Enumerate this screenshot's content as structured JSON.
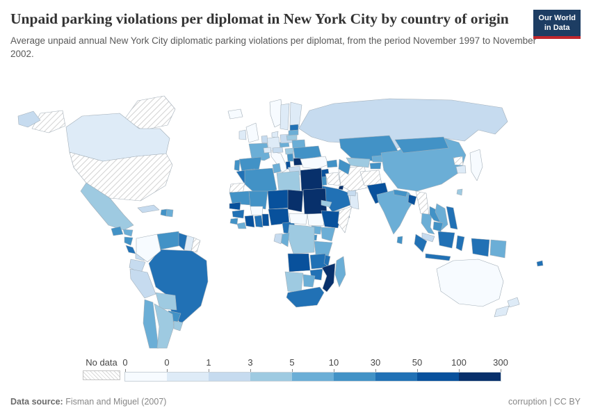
{
  "header": {
    "title": "Unpaid parking violations per diplomat in New York City by country of origin",
    "subtitle": "Average unpaid annual New York City diplomatic parking violations per diplomat, from the period November 1997 to November 2002.",
    "logo": {
      "line1": "Our World",
      "line2": "in Data"
    }
  },
  "footer": {
    "datasource_label": "Data source:",
    "datasource_value": "Fisman and Miguel (2007)",
    "credits": "corruption | CC BY"
  },
  "colors": {
    "brand_navy": "#1d3d63",
    "brand_red": "#c0272d",
    "country_border": "#a2aeb8",
    "title_text": "#333333",
    "subtitle_text": "#595959",
    "footer_text": "#878787"
  },
  "chart_data": {
    "type": "choropleth_map",
    "metric": "Average unpaid annual New York City diplomatic parking violations per diplomat, November 1997 to November 2002",
    "legend": {
      "no_data_label": "No data",
      "tick_labels": [
        "0",
        "0",
        "1",
        "3",
        "5",
        "10",
        "30",
        "50",
        "100",
        "300"
      ],
      "bucket_ranges": [
        "0",
        "0–1",
        "1–3",
        "3–5",
        "5–10",
        "10–30",
        "30–50",
        "50–100",
        "100–300"
      ],
      "colors": [
        "#f7fbff",
        "#deebf7",
        "#c6dbef",
        "#9ecae1",
        "#6baed6",
        "#4292c6",
        "#2171b5",
        "#08519c",
        "#08306b"
      ]
    },
    "countries": [
      {
        "name": "Canada",
        "bucket": 1
      },
      {
        "name": "United States",
        "bucket": null
      },
      {
        "name": "Greenland",
        "bucket": null
      },
      {
        "name": "Mexico",
        "bucket": 3
      },
      {
        "name": "Guatemala",
        "bucket": 5
      },
      {
        "name": "Honduras",
        "bucket": 4
      },
      {
        "name": "Nicaragua",
        "bucket": 5
      },
      {
        "name": "Costa Rica",
        "bucket": 6
      },
      {
        "name": "Panama",
        "bucket": 2
      },
      {
        "name": "Cuba",
        "bucket": 2
      },
      {
        "name": "Haiti",
        "bucket": 5
      },
      {
        "name": "Dominican Republic",
        "bucket": 4
      },
      {
        "name": "Colombia",
        "bucket": 0
      },
      {
        "name": "Venezuela",
        "bucket": 5
      },
      {
        "name": "Guyana",
        "bucket": 6
      },
      {
        "name": "Suriname",
        "bucket": 1
      },
      {
        "name": "French Guiana",
        "bucket": null
      },
      {
        "name": "Ecuador",
        "bucket": 2
      },
      {
        "name": "Peru",
        "bucket": 2
      },
      {
        "name": "Brazil",
        "bucket": 6
      },
      {
        "name": "Bolivia",
        "bucket": 3
      },
      {
        "name": "Paraguay",
        "bucket": 5
      },
      {
        "name": "Chile",
        "bucket": 4
      },
      {
        "name": "Argentina",
        "bucket": 3
      },
      {
        "name": "Uruguay",
        "bucket": 3
      },
      {
        "name": "Iceland",
        "bucket": 0
      },
      {
        "name": "United Kingdom",
        "bucket": 0
      },
      {
        "name": "Ireland",
        "bucket": 1
      },
      {
        "name": "Norway",
        "bucket": 0
      },
      {
        "name": "Sweden",
        "bucket": 1
      },
      {
        "name": "Finland",
        "bucket": 1
      },
      {
        "name": "Denmark",
        "bucket": 1
      },
      {
        "name": "Germany",
        "bucket": 1
      },
      {
        "name": "Netherlands",
        "bucket": 2
      },
      {
        "name": "France",
        "bucket": 4
      },
      {
        "name": "Spain",
        "bucket": 5
      },
      {
        "name": "Portugal",
        "bucket": 5
      },
      {
        "name": "Italy",
        "bucket": 0
      },
      {
        "name": "Switzerland",
        "bucket": 1
      },
      {
        "name": "Austria",
        "bucket": 2
      },
      {
        "name": "Czechia",
        "bucket": 4
      },
      {
        "name": "Poland",
        "bucket": 2
      },
      {
        "name": "Hungary",
        "bucket": 3
      },
      {
        "name": "Romania",
        "bucket": 2
      },
      {
        "name": "Serbia",
        "bucket": 5
      },
      {
        "name": "Bulgaria",
        "bucket": 8
      },
      {
        "name": "Albania",
        "bucket": 7
      },
      {
        "name": "Greece",
        "bucket": 2
      },
      {
        "name": "Estonia",
        "bucket": 6
      },
      {
        "name": "Latvia",
        "bucket": 4
      },
      {
        "name": "Lithuania",
        "bucket": 3
      },
      {
        "name": "Belarus",
        "bucket": 4
      },
      {
        "name": "Ukraine",
        "bucket": 5
      },
      {
        "name": "Russia",
        "bucket": 2
      },
      {
        "name": "Turkey",
        "bucket": 0
      },
      {
        "name": "Azerbaijan",
        "bucket": 5
      },
      {
        "name": "Syria",
        "bucket": 7
      },
      {
        "name": "Israel",
        "bucket": 2
      },
      {
        "name": "Jordan",
        "bucket": 5
      },
      {
        "name": "Iraq",
        "bucket": null
      },
      {
        "name": "Iran",
        "bucket": null
      },
      {
        "name": "Kuwait",
        "bucket": 8
      },
      {
        "name": "Saudi Arabia",
        "bucket": 6
      },
      {
        "name": "Yemen",
        "bucket": 5
      },
      {
        "name": "Oman",
        "bucket": 1
      },
      {
        "name": "United Arab Emirates",
        "bucket": 2
      },
      {
        "name": "Kazakhstan",
        "bucket": 5
      },
      {
        "name": "Uzbekistan",
        "bucket": 3
      },
      {
        "name": "Turkmenistan",
        "bucket": 5
      },
      {
        "name": "Kyrgyzstan",
        "bucket": 4
      },
      {
        "name": "Tajikistan",
        "bucket": 5
      },
      {
        "name": "Afghanistan",
        "bucket": null
      },
      {
        "name": "Pakistan",
        "bucket": 7
      },
      {
        "name": "India",
        "bucket": 4
      },
      {
        "name": "Nepal",
        "bucket": 5
      },
      {
        "name": "Bangladesh",
        "bucket": 7
      },
      {
        "name": "Sri Lanka",
        "bucket": 5
      },
      {
        "name": "Myanmar",
        "bucket": null
      },
      {
        "name": "Thailand",
        "bucket": 4
      },
      {
        "name": "Laos",
        "bucket": 5
      },
      {
        "name": "Vietnam",
        "bucket": 4
      },
      {
        "name": "Cambodia",
        "bucket": 5
      },
      {
        "name": "Malaysia",
        "bucket": 2
      },
      {
        "name": "Indonesia",
        "bucket": 6
      },
      {
        "name": "Philippines",
        "bucket": 6
      },
      {
        "name": "Papua New Guinea",
        "bucket": 4
      },
      {
        "name": "Fiji",
        "bucket": 6
      },
      {
        "name": "China",
        "bucket": 4
      },
      {
        "name": "Mongolia",
        "bucket": 5
      },
      {
        "name": "North Korea",
        "bucket": null
      },
      {
        "name": "South Korea",
        "bucket": 1
      },
      {
        "name": "Japan",
        "bucket": 0
      },
      {
        "name": "Taiwan",
        "bucket": 3
      },
      {
        "name": "Australia",
        "bucket": 0
      },
      {
        "name": "New Zealand",
        "bucket": 1
      },
      {
        "name": "Morocco",
        "bucket": 6
      },
      {
        "name": "Western Sahara",
        "bucket": null
      },
      {
        "name": "Algeria",
        "bucket": 5
      },
      {
        "name": "Tunisia",
        "bucket": 4
      },
      {
        "name": "Libya",
        "bucket": 3
      },
      {
        "name": "Egypt",
        "bucket": 8
      },
      {
        "name": "Mauritania",
        "bucket": 5
      },
      {
        "name": "Mali",
        "bucket": 5
      },
      {
        "name": "Niger",
        "bucket": 7
      },
      {
        "name": "Chad",
        "bucket": 8
      },
      {
        "name": "Sudan",
        "bucket": 8
      },
      {
        "name": "Eritrea",
        "bucket": 3
      },
      {
        "name": "Senegal",
        "bucket": 7
      },
      {
        "name": "Guinea",
        "bucket": 6
      },
      {
        "name": "Sierra Leone",
        "bucket": 5
      },
      {
        "name": "Liberia",
        "bucket": 4
      },
      {
        "name": "Cote d'Ivoire",
        "bucket": 7
      },
      {
        "name": "Burkina Faso",
        "bucket": 0
      },
      {
        "name": "Ghana",
        "bucket": 6
      },
      {
        "name": "Benin",
        "bucket": 7
      },
      {
        "name": "Nigeria",
        "bucket": 7
      },
      {
        "name": "Cameroon",
        "bucket": 6
      },
      {
        "name": "Central African Republic",
        "bucket": 0
      },
      {
        "name": "South Sudan",
        "bucket": 0
      },
      {
        "name": "Ethiopia",
        "bucket": 7
      },
      {
        "name": "Somalia",
        "bucket": null
      },
      {
        "name": "Kenya",
        "bucket": 4
      },
      {
        "name": "Uganda",
        "bucket": 4
      },
      {
        "name": "Rwanda",
        "bucket": 5
      },
      {
        "name": "Tanzania",
        "bucket": 4
      },
      {
        "name": "Democratic Republic of Congo",
        "bucket": 3
      },
      {
        "name": "Congo",
        "bucket": 4
      },
      {
        "name": "Gabon",
        "bucket": 2
      },
      {
        "name": "Angola",
        "bucket": 7
      },
      {
        "name": "Zambia",
        "bucket": 6
      },
      {
        "name": "Malawi",
        "bucket": 6
      },
      {
        "name": "Mozambique",
        "bucket": 8
      },
      {
        "name": "Zimbabwe",
        "bucket": 6
      },
      {
        "name": "Namibia",
        "bucket": 3
      },
      {
        "name": "Botswana",
        "bucket": 4
      },
      {
        "name": "South Africa",
        "bucket": 6
      },
      {
        "name": "Madagascar",
        "bucket": 4
      }
    ]
  }
}
